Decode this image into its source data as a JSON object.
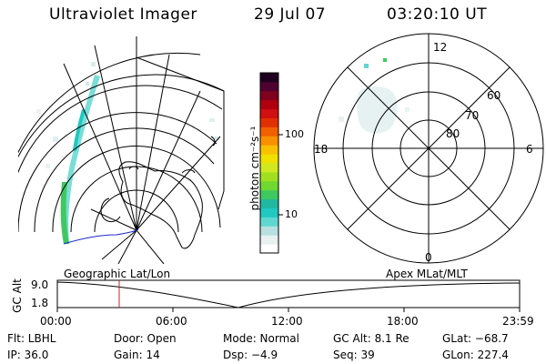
{
  "header": {
    "instrument": "Ultraviolet Imager",
    "date": "29 Jul 07",
    "time": "03:20:10 UT"
  },
  "colorbar": {
    "unit_label": "photon cm⁻²s⁻¹",
    "ticks": [
      "100",
      "10"
    ],
    "colors": [
      "#ffffff",
      "#e8f0f0",
      "#b8e0e0",
      "#60d8d0",
      "#20c8c0",
      "#20b8a0",
      "#40c860",
      "#70d830",
      "#a0e020",
      "#d0e820",
      "#f0e000",
      "#f8c000",
      "#f89000",
      "#f06000",
      "#e03000",
      "#d01010",
      "#b00010",
      "#800020",
      "#500030",
      "#200020"
    ]
  },
  "left_panel": {
    "caption": "Geographic Lat/Lon"
  },
  "polar_plot": {
    "caption": "Apex MLat/MLT",
    "mlt_labels": {
      "top": "12",
      "left": "18",
      "right": "6",
      "bottom": "0"
    },
    "lat_labels": [
      "60",
      "70",
      "80"
    ]
  },
  "timeline": {
    "axis_label": "GC Alt",
    "y_max": "9.0",
    "y_min": "1.8",
    "ticks": [
      "00:00",
      "06:00",
      "12:00",
      "18:00",
      "23:59"
    ],
    "marker_color": "#cc2222"
  },
  "info": {
    "filter": "Flt: LBHL",
    "door": "Door: Open",
    "mode": "Mode: Normal",
    "gc_alt": "GC Alt: 8.1 Re",
    "glat": "GLat: −68.7",
    "ip": "IP: 36.0",
    "gain": "Gain: 14",
    "dsp": "Dsp:    −4.9",
    "seq": "Seq: 39",
    "glon": "GLon: 227.4"
  }
}
